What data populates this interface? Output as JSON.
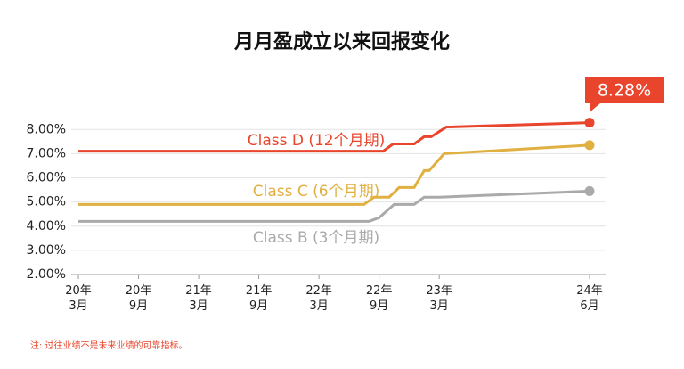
{
  "chart_data": {
    "type": "line",
    "title": "月月盈成立以来回报变化",
    "footnote": "注: 过往业绩不是未来业绩的可靠指标。",
    "x": [
      0,
      28.5,
      29,
      29.5,
      30,
      30.4,
      31,
      31.4,
      31.5,
      32,
      33.5,
      34.5,
      35,
      35.2,
      36,
      36.5,
      36.7,
      51
    ],
    "series": [
      {
        "name": "Class D (12个月期)",
        "color": "#e8452c",
        "values": [
          7.1,
          null,
          null,
          null,
          null,
          7.1,
          null,
          7.4,
          null,
          null,
          7.4,
          7.7,
          null,
          7.7,
          null,
          null,
          8.1,
          8.28
        ],
        "value_labels": [
          null,
          null,
          null,
          null,
          null,
          null,
          null,
          null,
          null,
          null,
          null,
          null,
          null,
          null,
          null,
          null,
          null,
          "8.28%"
        ]
      },
      {
        "name": "Class C (6个月期)",
        "color": "#e0b040",
        "values": [
          4.9,
          4.9,
          null,
          5.2,
          null,
          null,
          5.2,
          null,
          null,
          5.6,
          5.6,
          6.3,
          6.3,
          null,
          null,
          7.0,
          null,
          7.35
        ]
      },
      {
        "name": "Class B (3个月期)",
        "color": "#aaaaaa",
        "values": [
          4.2,
          null,
          4.2,
          null,
          4.35,
          null,
          null,
          null,
          4.9,
          null,
          4.9,
          5.2,
          null,
          null,
          5.2,
          null,
          null,
          5.45
        ]
      }
    ],
    "xlim": [
      0,
      51
    ],
    "xticks": [
      {
        "value": 0,
        "label": "20年\n3月"
      },
      {
        "value": 6,
        "label": "20年\n9月"
      },
      {
        "value": 12,
        "label": "21年\n3月"
      },
      {
        "value": 18,
        "label": "21年\n9月"
      },
      {
        "value": 24,
        "label": "22年\n3月"
      },
      {
        "value": 30,
        "label": "22年\n9月"
      },
      {
        "value": 36,
        "label": "23年\n3月"
      },
      {
        "value": 51,
        "label": "24年\n6月"
      }
    ],
    "ylim": [
      2,
      8.6
    ],
    "yticks": [
      {
        "value": 2,
        "label": "2.00%"
      },
      {
        "value": 3,
        "label": "3.00%"
      },
      {
        "value": 4,
        "label": "4.00%"
      },
      {
        "value": 5,
        "label": "5.00%"
      },
      {
        "value": 6,
        "label": "6.00%"
      },
      {
        "value": 7,
        "label": "7.00%"
      },
      {
        "value": 8,
        "label": "8.00%"
      }
    ],
    "grid": true
  }
}
